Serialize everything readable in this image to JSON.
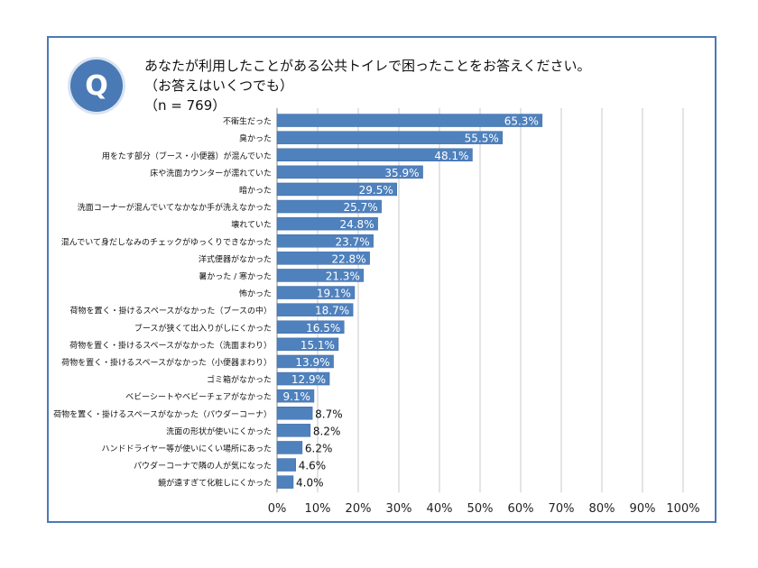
{
  "question": {
    "badge": "Q",
    "line1": "あなたが利用したことがある公共トイレで困ったことをお答えください。",
    "line2": "（お答えはいくつでも）",
    "line3": "（n = 769）"
  },
  "colors": {
    "bar": "#4f81bd",
    "frame": "#4a7ab5",
    "grid": "#c8c8c8"
  },
  "chart_data": {
    "type": "bar",
    "orientation": "horizontal",
    "categories": [
      "不衛生だった",
      "臭かった",
      "用をたす部分（ブース・小便器）が混んでいた",
      "床や洗面カウンターが濡れていた",
      "暗かった",
      "洗面コーナーが混んでいてなかなか手が洗えなかった",
      "壊れていた",
      "混んでいて身だしなみのチェックがゆっくりできなかった",
      "洋式便器がなかった",
      "暑かった / 寒かった",
      "怖かった",
      "荷物を置く・掛けるスペースがなかった（ブースの中）",
      "ブースが狭くて出入りがしにくかった",
      "荷物を置く・掛けるスペースがなかった（洗面まわり）",
      "荷物を置く・掛けるスペースがなかった（小便器まわり）",
      "ゴミ箱がなかった",
      "ベビーシートやベビーチェアがなかった",
      "荷物を置く・掛けるスペースがなかった（パウダーコーナ）",
      "洗面の形状が使いにくかった",
      "ハンドドライヤー等が使いにくい場所にあった",
      "パウダーコーナで隣の人が気になった",
      "鏡が遠すぎて化粧しにくかった"
    ],
    "values": [
      65.3,
      55.5,
      48.1,
      35.9,
      29.5,
      25.7,
      24.8,
      23.7,
      22.8,
      21.3,
      19.1,
      18.7,
      16.5,
      15.1,
      13.9,
      12.9,
      9.1,
      8.7,
      8.2,
      6.2,
      4.6,
      4.0
    ],
    "value_labels": [
      "65.3%",
      "55.5%",
      "48.1%",
      "35.9%",
      "29.5%",
      "25.7%",
      "24.8%",
      "23.7%",
      "22.8%",
      "21.3%",
      "19.1%",
      "18.7%",
      "16.5%",
      "15.1%",
      "13.9%",
      "12.9%",
      "9.1%",
      "8.7%",
      "8.2%",
      "6.2%",
      "4.6%",
      "4.0%"
    ],
    "xlim": [
      0,
      100
    ],
    "xticks": [
      "0%",
      "10%",
      "20%",
      "30%",
      "40%",
      "50%",
      "60%",
      "70%",
      "80%",
      "90%",
      "100%"
    ],
    "grid": true
  }
}
